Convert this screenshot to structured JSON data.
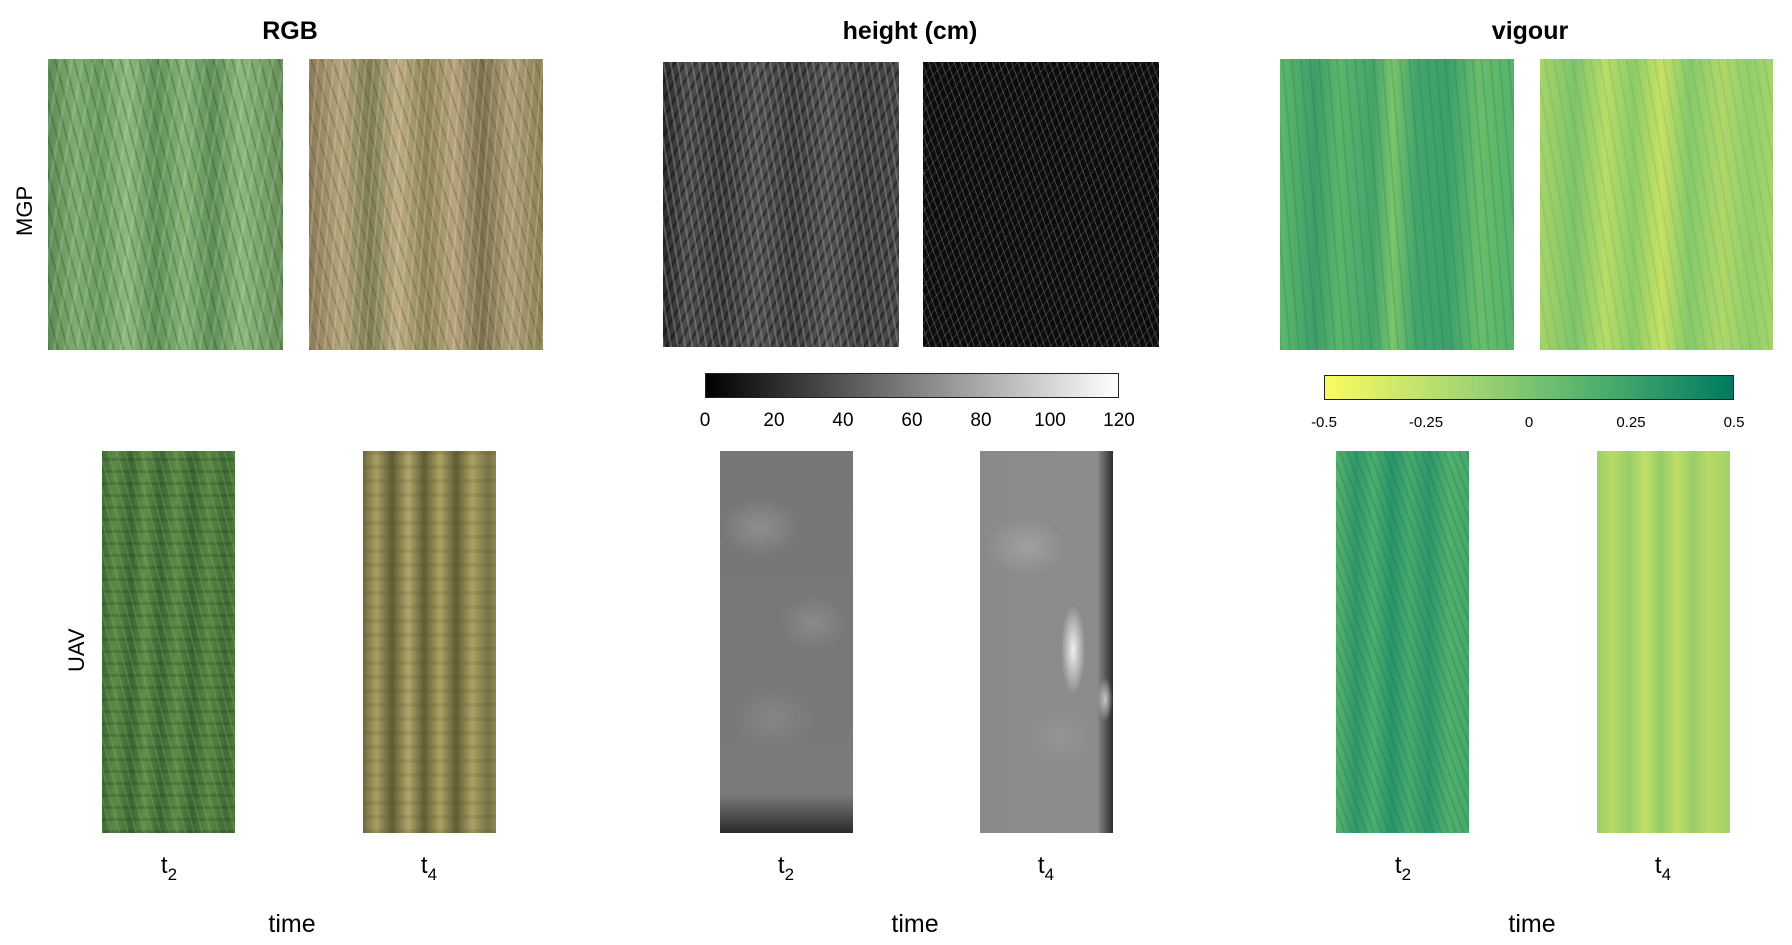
{
  "columns": [
    {
      "title": "RGB"
    },
    {
      "title": "height (cm)"
    },
    {
      "title": "vigour"
    }
  ],
  "rows": [
    {
      "label": "MGP"
    },
    {
      "label": "UAV"
    }
  ],
  "time_points": {
    "t2": {
      "base": "t",
      "sub": "2"
    },
    "t4": {
      "base": "t",
      "sub": "4"
    }
  },
  "x_axis_label": "time",
  "colorbars": {
    "height": {
      "ticks": [
        "0",
        "20",
        "40",
        "60",
        "80",
        "100",
        "120"
      ],
      "range": [
        0,
        120
      ],
      "colors": [
        "#000000",
        "#ffffff"
      ]
    },
    "vigour": {
      "ticks": [
        "-0.5",
        "-0.25",
        "0",
        "0.25",
        "0.5"
      ],
      "range": [
        -0.5,
        0.5
      ],
      "colors": [
        "#fbfb5e",
        "#a8d872",
        "#4fb06e",
        "#007a60"
      ]
    }
  }
}
